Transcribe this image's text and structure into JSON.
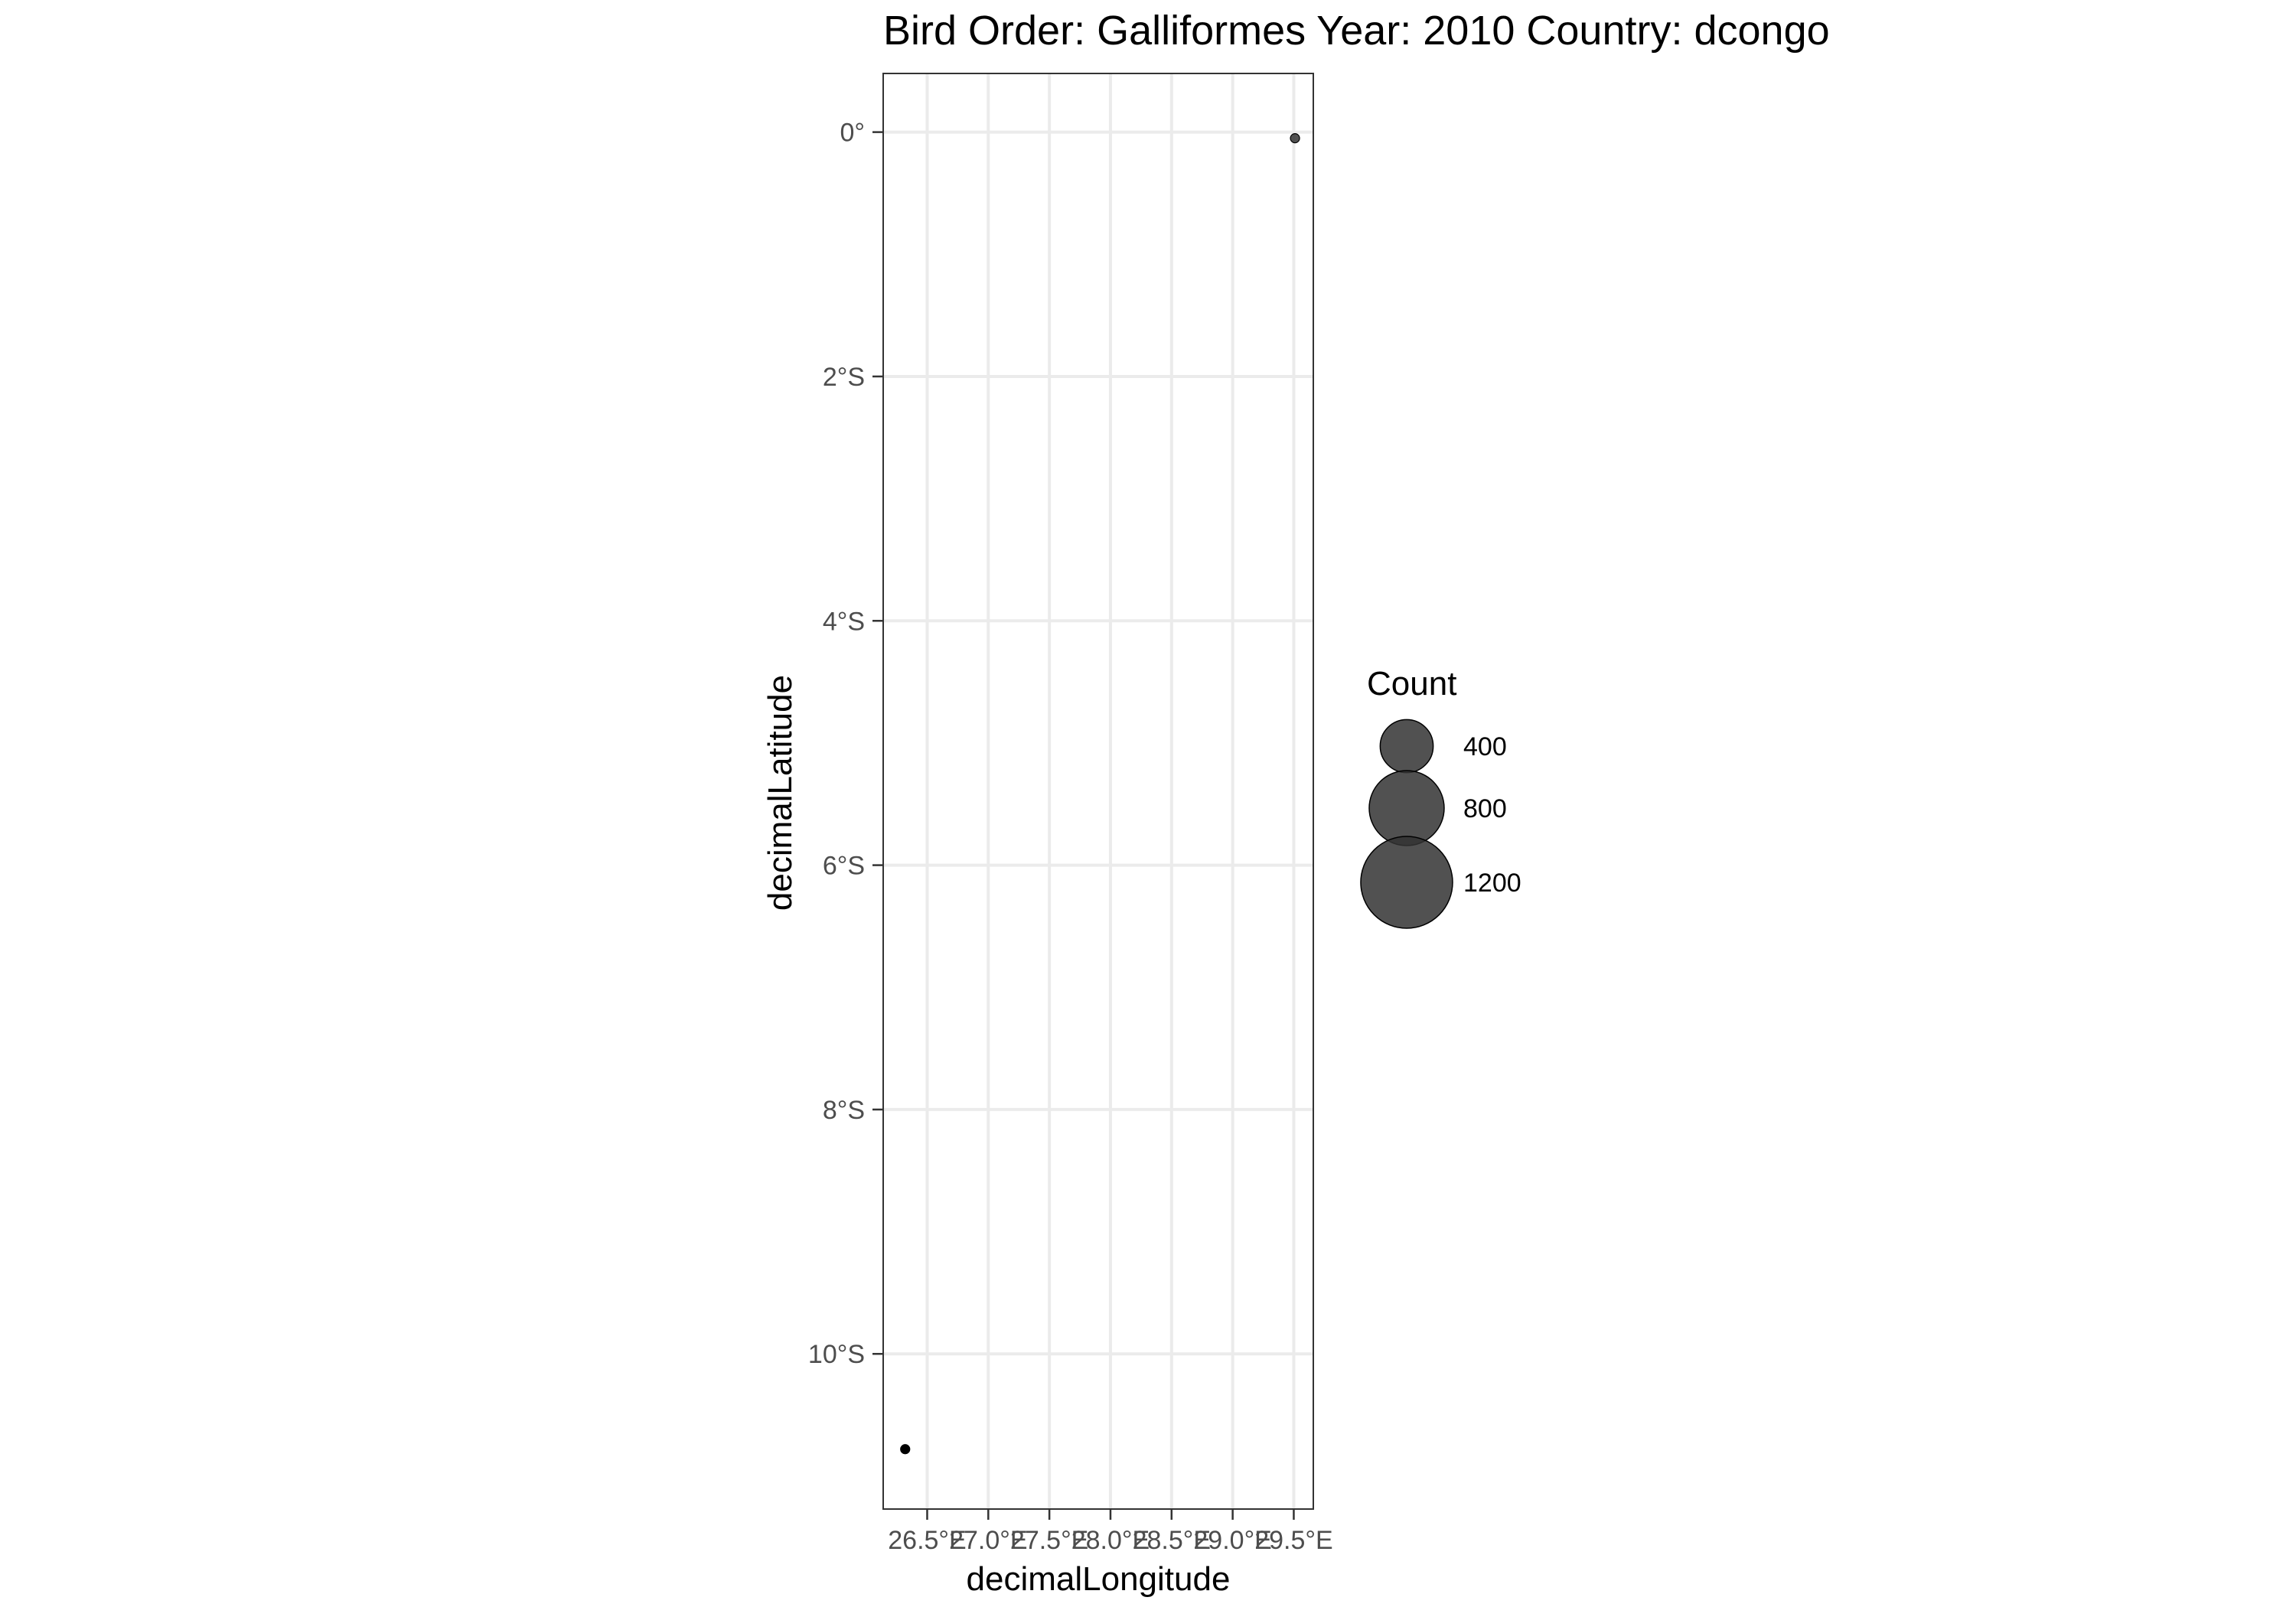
{
  "chart_data": {
    "type": "scatter",
    "title": "Bird Order: Galliformes Year: 2010 Country: dcongo",
    "xlabel": "decimalLongitude",
    "ylabel": "decimalLatitude",
    "x_ticks": [
      {
        "value": 26.5,
        "label": "26.5°E"
      },
      {
        "value": 27.0,
        "label": "27.0°E"
      },
      {
        "value": 27.5,
        "label": "27.5°E"
      },
      {
        "value": 28.0,
        "label": "28.0°E"
      },
      {
        "value": 28.5,
        "label": "28.5°E"
      },
      {
        "value": 29.0,
        "label": "29.0°E"
      },
      {
        "value": 29.5,
        "label": "29.5°E"
      }
    ],
    "y_ticks": [
      {
        "value": 0,
        "label": "0°"
      },
      {
        "value": -2,
        "label": "2°S"
      },
      {
        "value": -4,
        "label": "4°S"
      },
      {
        "value": -6,
        "label": "6°S"
      },
      {
        "value": -8,
        "label": "8°S"
      },
      {
        "value": -10,
        "label": "10°S"
      }
    ],
    "xlim": [
      26.14,
      29.66
    ],
    "ylim": [
      -11.27,
      0.48
    ],
    "points": [
      {
        "x": 29.51,
        "y": -0.05,
        "count": 1,
        "color": "#333333",
        "opacity": 0.85
      },
      {
        "x": 26.32,
        "y": -10.78,
        "count": 1,
        "color": "#000000",
        "opacity": 1.0
      }
    ],
    "legend": {
      "title": "Count",
      "position": "right",
      "entries": [
        {
          "label": "400",
          "value": 400
        },
        {
          "label": "800",
          "value": 800
        },
        {
          "label": "1200",
          "value": 1200
        }
      ],
      "color": "#333333",
      "opacity": 0.85
    },
    "grid": true,
    "theme": "bw"
  }
}
